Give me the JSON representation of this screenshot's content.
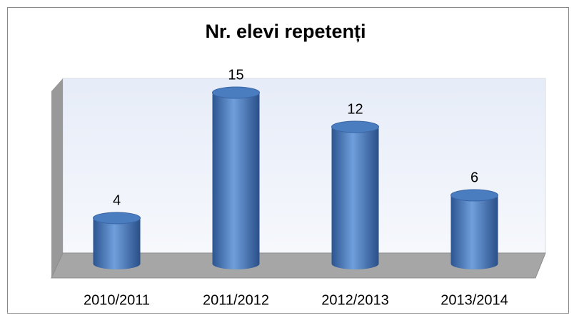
{
  "chart_data": {
    "type": "bar3d",
    "title": "Nr. elevi repetenți",
    "categories": [
      "2010/2011",
      "2011/2012",
      "2012/2013",
      "2013/2014"
    ],
    "values": [
      4,
      15,
      12,
      6
    ],
    "color": "#4a7cc0"
  }
}
